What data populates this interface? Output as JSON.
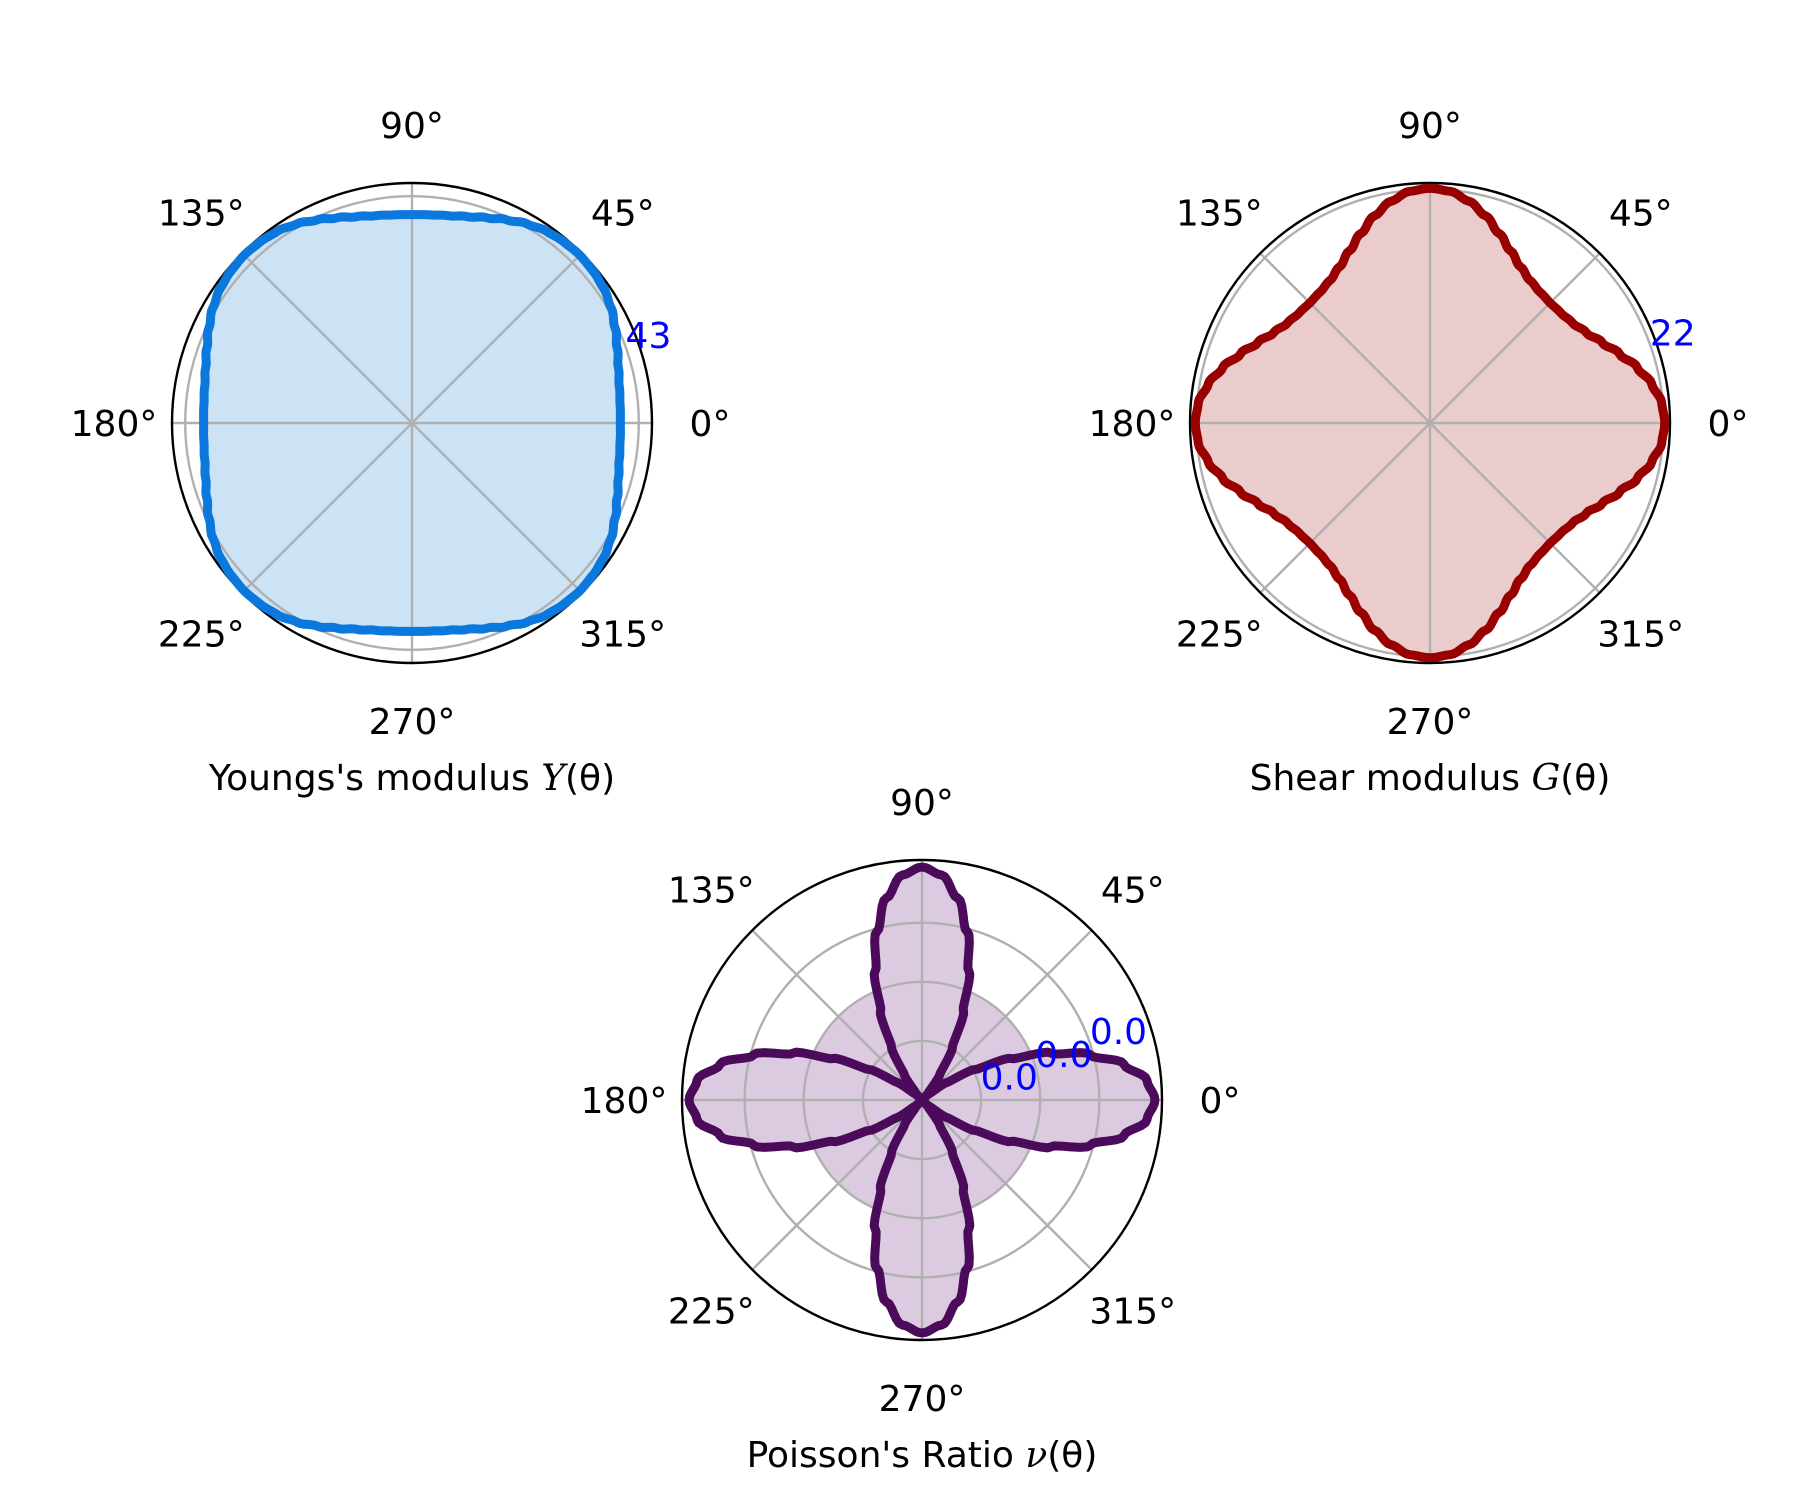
{
  "chart_data": [
    {
      "id": "youngs",
      "type": "polar",
      "xlabel_prefix": "Youngs's modulus ",
      "xlabel_symbol": "Y",
      "xlabel_suffix": "(θ)",
      "theta_ticks": [
        "0°",
        "45°",
        "90°",
        "135°",
        "180°",
        "225°",
        "270°",
        "315°"
      ],
      "r_tick_labels": [
        "43"
      ],
      "r_tick_values": [
        43
      ],
      "rmax": 45.5,
      "grid": true,
      "line_color": "#0a78dc",
      "fill_color": "#cce3f6",
      "series": {
        "theta_deg": [
          0,
          5,
          10,
          15,
          20,
          25,
          30,
          35,
          40,
          45,
          50,
          55,
          60,
          65,
          70,
          75,
          80,
          85,
          90
        ],
        "r": [
          39.5,
          39.6,
          39.9,
          40.5,
          41.4,
          42.5,
          43.6,
          44.4,
          44.8,
          45.0,
          44.8,
          44.4,
          43.6,
          42.5,
          41.4,
          40.5,
          39.9,
          39.6,
          39.5
        ]
      },
      "symmetry": "fourfold"
    },
    {
      "id": "shear",
      "type": "polar",
      "xlabel_prefix": "Shear modulus ",
      "xlabel_symbol": "G",
      "xlabel_suffix": "(θ)",
      "theta_ticks": [
        "0°",
        "45°",
        "90°",
        "135°",
        "180°",
        "225°",
        "270°",
        "315°"
      ],
      "r_tick_labels": [
        "22"
      ],
      "r_tick_values": [
        22
      ],
      "rmax": 22.6,
      "grid": true,
      "line_color": "#990000",
      "fill_color": "#ebcccc",
      "series": {
        "theta_deg": [
          0,
          5,
          10,
          15,
          20,
          25,
          30,
          35,
          40,
          45,
          50,
          55,
          60,
          65,
          70,
          75,
          80,
          85,
          90
        ],
        "r": [
          22.1,
          21.9,
          21.2,
          20.2,
          19.0,
          17.9,
          17.0,
          16.4,
          16.1,
          16.0,
          16.1,
          16.4,
          17.0,
          17.9,
          19.0,
          20.2,
          21.2,
          21.9,
          22.1
        ]
      },
      "symmetry": "fourfold"
    },
    {
      "id": "poisson",
      "type": "polar",
      "xlabel_prefix": "Poisson's Ratio ",
      "xlabel_symbol": "ν",
      "xlabel_suffix": "(θ)",
      "theta_ticks": [
        "0°",
        "45°",
        "90°",
        "135°",
        "180°",
        "225°",
        "270°",
        "315°"
      ],
      "r_tick_labels": [
        "0.0",
        "0.0",
        "0.0"
      ],
      "r_tick_values": [
        0.01,
        0.02,
        0.03
      ],
      "rmax": 0.0406,
      "grid": true,
      "line_color": "#4b0a5a",
      "fill_color": "#dccbe0",
      "inner_fill_value": 0.02,
      "series": {
        "theta_deg": [
          0,
          5,
          10,
          15,
          20,
          25,
          30,
          35,
          40,
          45,
          50,
          55,
          60,
          65,
          70,
          75,
          80,
          85,
          90
        ],
        "r": [
          0.0394,
          0.0382,
          0.0347,
          0.0295,
          0.0232,
          0.0166,
          0.0103,
          0.0052,
          0.0018,
          0.0006,
          0.0018,
          0.0052,
          0.0103,
          0.0166,
          0.0232,
          0.0295,
          0.0347,
          0.0382,
          0.0394
        ]
      },
      "symmetry": "fourfold"
    }
  ]
}
